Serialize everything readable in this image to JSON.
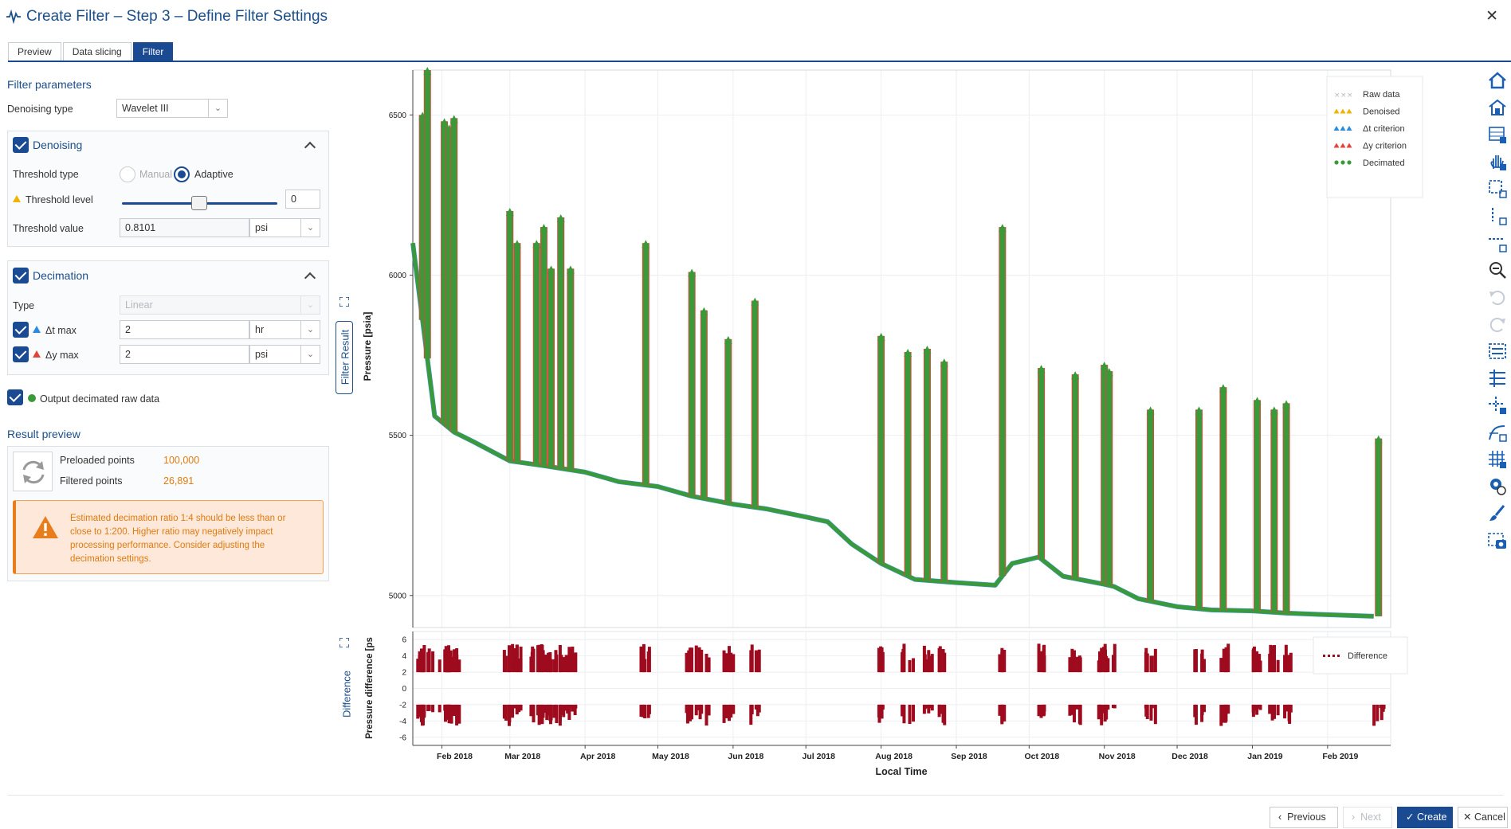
{
  "window": {
    "title": "Create Filter – Step 3 – Define Filter Settings"
  },
  "tabs": [
    "Preview",
    "Data slicing",
    "Filter"
  ],
  "filter_params": {
    "title": "Filter parameters",
    "denoising_type_label": "Denoising type",
    "denoising_type_value": "Wavelet III"
  },
  "denoising": {
    "title": "Denoising",
    "threshold_type_label": "Threshold type",
    "manual_label": "Manual",
    "adaptive_label": "Adaptive",
    "threshold_level_label": "Threshold level",
    "threshold_level_value": "0",
    "threshold_value_label": "Threshold value",
    "threshold_value": "0.8101",
    "threshold_unit": "psi"
  },
  "decimation": {
    "title": "Decimation",
    "type_label": "Type",
    "type_value": "Linear",
    "dt_label": "Δt max",
    "dt_value": "2",
    "dt_unit": "hr",
    "dy_label": "Δy max",
    "dy_value": "2",
    "dy_unit": "psi",
    "output_label": "Output decimated raw data"
  },
  "result_preview": {
    "title": "Result preview",
    "preloaded_label": "Preloaded points",
    "preloaded_value": "100,000",
    "filtered_label": "Filtered points",
    "filtered_value": "26,891",
    "warning": "Estimated decimation ratio 1:4 should be less than or close to 1:200. Higher ratio may negatively impact processing performance. Consider adjusting the decimation settings."
  },
  "colors": {
    "accent": "#1a4a91",
    "raw": "#b8b8b8",
    "denoised": "#f0b400",
    "dt": "#2a8be0",
    "dy": "#e0443a",
    "decimated": "#3a9a3a",
    "difference": "#9e0b1e",
    "warning": "#e07b10"
  },
  "chart_data": [
    {
      "type": "line",
      "panel_tab": "Filter Result",
      "ylabel": "Pressure [psia]",
      "yticks": [
        5000,
        5500,
        6000,
        6500
      ],
      "ylim": [
        4900,
        6640
      ],
      "grid": true,
      "legend_position": "top-right",
      "legend": [
        "Raw data",
        "Denoised",
        "Δt criterion",
        "Δy criterion",
        "Decimated"
      ],
      "series": [
        {
          "name": "Decimated",
          "baseline_x": [
            "2018-01-20",
            "2018-01-29",
            "2018-02-06",
            "2018-02-14",
            "2018-03-01",
            "2018-03-15",
            "2018-04-01",
            "2018-04-15",
            "2018-05-01",
            "2018-05-15",
            "2018-06-01",
            "2018-06-15",
            "2018-07-01",
            "2018-07-10",
            "2018-07-20",
            "2018-08-01",
            "2018-08-15",
            "2018-09-01",
            "2018-09-17",
            "2018-09-24",
            "2018-10-05",
            "2018-10-15",
            "2018-11-01",
            "2018-11-05",
            "2018-11-15",
            "2018-12-01",
            "2018-12-15",
            "2019-01-01",
            "2019-01-15",
            "2019-02-01",
            "2019-02-20"
          ],
          "baseline_y": [
            6100,
            5560,
            5510,
            5480,
            5420,
            5405,
            5385,
            5355,
            5340,
            5310,
            5285,
            5270,
            5245,
            5230,
            5160,
            5100,
            5050,
            5040,
            5032,
            5100,
            5120,
            5060,
            5035,
            5028,
            4990,
            4965,
            4955,
            4952,
            4945,
            4940,
            4935
          ],
          "spikes_x": [
            "2018-01-24",
            "2018-01-26",
            "2018-02-02",
            "2018-02-04",
            "2018-02-06",
            "2018-03-01",
            "2018-03-04",
            "2018-03-12",
            "2018-03-15",
            "2018-03-18",
            "2018-03-22",
            "2018-03-26",
            "2018-04-26",
            "2018-05-15",
            "2018-05-20",
            "2018-05-30",
            "2018-06-10",
            "2018-08-01",
            "2018-08-12",
            "2018-08-20",
            "2018-08-27",
            "2018-09-20",
            "2018-10-06",
            "2018-10-20",
            "2018-11-01",
            "2018-11-03",
            "2018-11-20",
            "2018-12-10",
            "2018-12-20",
            "2019-01-03",
            "2019-01-10",
            "2019-01-15",
            "2019-02-22"
          ],
          "spikes_y": [
            6500,
            6640,
            6480,
            6460,
            6490,
            6200,
            6100,
            6100,
            6150,
            6020,
            6180,
            6020,
            6100,
            6010,
            5890,
            5800,
            5920,
            5810,
            5760,
            5770,
            5730,
            6150,
            5710,
            5690,
            5720,
            5700,
            5580,
            5580,
            5650,
            5610,
            5580,
            5600,
            5490
          ]
        }
      ]
    },
    {
      "type": "scatter",
      "panel_tab": "Difference",
      "ylabel": "Pressure difference [ps",
      "yticks": [
        6,
        4,
        2,
        0,
        -2,
        -4,
        -6
      ],
      "ylim": [
        -7,
        7
      ],
      "xlabel": "Local Time",
      "xticks": [
        "Feb 2018",
        "Mar 2018",
        "Apr 2018",
        "May 2018",
        "Jun 2018",
        "Jul 2018",
        "Aug 2018",
        "Sep 2018",
        "Oct 2018",
        "Nov 2018",
        "Dec 2018",
        "Jan 2019",
        "Feb 2019"
      ],
      "legend_position": "top-right",
      "legend": [
        "Difference"
      ],
      "series": [
        {
          "name": "Difference",
          "band_high": [
            2,
            5.5
          ],
          "band_low": [
            -6.5,
            -2
          ]
        }
      ]
    }
  ],
  "footer": {
    "previous": "Previous",
    "next": "Next",
    "create": "Create",
    "cancel": "Cancel"
  }
}
